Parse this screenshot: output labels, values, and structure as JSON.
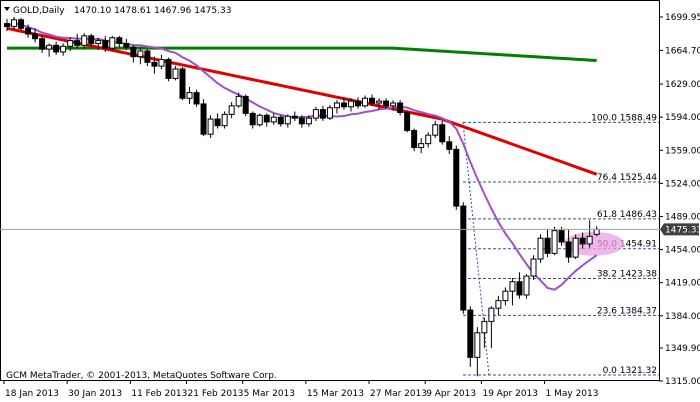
{
  "header": {
    "symbol": "GOLD,Daily",
    "ohlc": "1470.10 1478.61 1467.96 1475.33"
  },
  "copyright": "GCM MetaTrader, © 2001-2013, MetaQuotes Software Corp.",
  "price_tag": "1475.33",
  "colors": {
    "background": "#ffffff",
    "candle_bull_fill": "#ffffff",
    "candle_bear_fill": "#000000",
    "ma_fast": "#a050c8",
    "ma_mid": "#e00000",
    "ma_slow": "#008000",
    "fib_line": "#3050a0",
    "ellipse": "#e8a0e0",
    "price_tag_bg": "#404040"
  },
  "chart_data": {
    "type": "candlestick",
    "y_ticks": [
      "1699.95",
      "1664.70",
      "1629.00",
      "1594.00",
      "1559.00",
      "1524.00",
      "1489.00",
      "1454.00",
      "1419.00",
      "1384.00",
      "1349.90",
      "1315.00"
    ],
    "x_ticks": [
      "18 Jan 2013",
      "30 Jan 2013",
      "11 Feb 2013",
      "21 Feb 2013",
      "5 Mar 2013",
      "15 Mar 2013",
      "27 Mar 2013",
      "9 Apr 2013",
      "19 Apr 2013",
      "1 May 2013"
    ],
    "fib_levels": [
      {
        "level": "100.0",
        "price": "1588.49",
        "value": 1588.49
      },
      {
        "level": "76.4",
        "price": "1525.44",
        "value": 1525.44
      },
      {
        "level": "61.8",
        "price": "1486.43",
        "value": 1486.43
      },
      {
        "level": "50.0",
        "price": "1454.91",
        "value": 1454.91
      },
      {
        "level": "38.2",
        "price": "1423.38",
        "value": 1423.38
      },
      {
        "level": "23.6",
        "price": "1384.37",
        "value": 1384.37
      },
      {
        "level": "0.0",
        "price": "1321.32",
        "value": 1321.32
      }
    ],
    "current_price": 1475.33,
    "candles": [
      [
        1693,
        1698,
        1685,
        1690
      ],
      [
        1690,
        1700,
        1687,
        1697
      ],
      [
        1697,
        1699,
        1686,
        1688
      ],
      [
        1688,
        1692,
        1678,
        1682
      ],
      [
        1682,
        1688,
        1673,
        1677
      ],
      [
        1677,
        1680,
        1662,
        1666
      ],
      [
        1666,
        1672,
        1658,
        1670
      ],
      [
        1670,
        1674,
        1660,
        1663
      ],
      [
        1663,
        1672,
        1659,
        1669
      ],
      [
        1669,
        1678,
        1664,
        1675
      ],
      [
        1675,
        1682,
        1667,
        1670
      ],
      [
        1670,
        1683,
        1666,
        1680
      ],
      [
        1680,
        1682,
        1668,
        1672
      ],
      [
        1672,
        1678,
        1665,
        1675
      ],
      [
        1675,
        1680,
        1663,
        1667
      ],
      [
        1667,
        1680,
        1664,
        1678
      ],
      [
        1678,
        1680,
        1668,
        1672
      ],
      [
        1672,
        1677,
        1665,
        1668
      ],
      [
        1668,
        1670,
        1652,
        1658
      ],
      [
        1658,
        1668,
        1650,
        1664
      ],
      [
        1664,
        1666,
        1648,
        1652
      ],
      [
        1652,
        1658,
        1640,
        1648
      ],
      [
        1648,
        1660,
        1645,
        1655
      ],
      [
        1655,
        1657,
        1632,
        1635
      ],
      [
        1635,
        1648,
        1633,
        1645
      ],
      [
        1645,
        1647,
        1612,
        1614
      ],
      [
        1614,
        1626,
        1608,
        1620
      ],
      [
        1620,
        1623,
        1605,
        1608
      ],
      [
        1608,
        1613,
        1574,
        1576
      ],
      [
        1576,
        1596,
        1572,
        1592
      ],
      [
        1592,
        1598,
        1582,
        1585
      ],
      [
        1585,
        1600,
        1582,
        1597
      ],
      [
        1597,
        1610,
        1593,
        1606
      ],
      [
        1606,
        1620,
        1604,
        1616
      ],
      [
        1616,
        1618,
        1595,
        1598
      ],
      [
        1598,
        1600,
        1582,
        1586
      ],
      [
        1586,
        1598,
        1584,
        1596
      ],
      [
        1596,
        1598,
        1584,
        1589
      ],
      [
        1589,
        1598,
        1586,
        1594
      ],
      [
        1594,
        1596,
        1584,
        1587
      ],
      [
        1587,
        1597,
        1583,
        1595
      ],
      [
        1595,
        1600,
        1590,
        1593
      ],
      [
        1593,
        1596,
        1583,
        1587
      ],
      [
        1587,
        1596,
        1584,
        1593
      ],
      [
        1593,
        1605,
        1590,
        1602
      ],
      [
        1602,
        1606,
        1590,
        1593
      ],
      [
        1593,
        1607,
        1591,
        1604
      ],
      [
        1604,
        1612,
        1598,
        1609
      ],
      [
        1609,
        1615,
        1602,
        1605
      ],
      [
        1605,
        1614,
        1600,
        1611
      ],
      [
        1611,
        1615,
        1603,
        1606
      ],
      [
        1606,
        1617,
        1604,
        1614
      ],
      [
        1614,
        1618,
        1606,
        1609
      ],
      [
        1609,
        1614,
        1602,
        1611
      ],
      [
        1611,
        1614,
        1603,
        1606
      ],
      [
        1606,
        1612,
        1601,
        1609
      ],
      [
        1609,
        1612,
        1596,
        1599
      ],
      [
        1599,
        1601,
        1578,
        1580
      ],
      [
        1580,
        1582,
        1558,
        1562
      ],
      [
        1562,
        1572,
        1556,
        1566
      ],
      [
        1566,
        1578,
        1562,
        1575
      ],
      [
        1575,
        1590,
        1572,
        1586
      ],
      [
        1586,
        1590,
        1565,
        1568
      ],
      [
        1568,
        1574,
        1555,
        1560
      ],
      [
        1560,
        1564,
        1496,
        1500
      ],
      [
        1500,
        1504,
        1386,
        1390
      ],
      [
        1390,
        1394,
        1330,
        1340
      ],
      [
        1340,
        1372,
        1320,
        1366
      ],
      [
        1366,
        1382,
        1350,
        1378
      ],
      [
        1378,
        1394,
        1350,
        1392
      ],
      [
        1392,
        1405,
        1385,
        1400
      ],
      [
        1400,
        1414,
        1395,
        1410
      ],
      [
        1410,
        1424,
        1395,
        1420
      ],
      [
        1420,
        1430,
        1402,
        1406
      ],
      [
        1406,
        1428,
        1402,
        1426
      ],
      [
        1426,
        1448,
        1422,
        1444
      ],
      [
        1444,
        1470,
        1440,
        1466
      ],
      [
        1466,
        1476,
        1446,
        1450
      ],
      [
        1450,
        1478,
        1448,
        1474
      ],
      [
        1474,
        1478,
        1458,
        1462
      ],
      [
        1462,
        1475,
        1440,
        1446
      ],
      [
        1446,
        1470,
        1444,
        1466
      ],
      [
        1466,
        1472,
        1455,
        1460
      ],
      [
        1460,
        1485,
        1456,
        1468
      ],
      [
        1470.1,
        1478.61,
        1467.96,
        1475.33
      ]
    ]
  }
}
